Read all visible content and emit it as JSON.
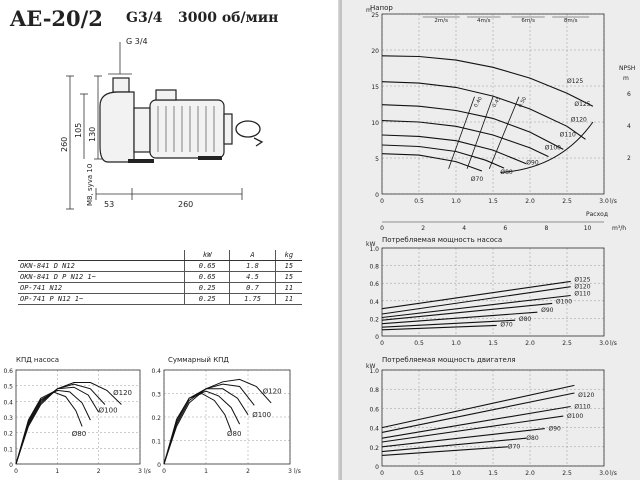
{
  "header": {
    "model": "AE-20/2",
    "connection": "G3/4",
    "speed": "3000 об/мин"
  },
  "drawing": {
    "dim_inlet": "G 3/4",
    "dim_130": "130",
    "dim_105": "105",
    "dim_260_vertical": "260",
    "dim_53": "53",
    "dim_260_horizontal": "260",
    "dim_suction": "M8, syva 10"
  },
  "spec_table": {
    "headers": [
      "",
      "kW",
      "A",
      "kg"
    ],
    "rows": [
      [
        "OKN-841 D N12",
        "0.65",
        "1.8",
        "15"
      ],
      [
        "OKN-841 D P N12 1~",
        "0.65",
        "4.5",
        "15"
      ],
      [
        "OP-741 N12",
        "0.25",
        "0.7",
        "11"
      ],
      [
        "OP-741 P N12 1~",
        "0.25",
        "1.75",
        "11"
      ]
    ]
  },
  "chart_data": [
    {
      "type": "line",
      "title": "КПД насоса",
      "xlabel": "l/s",
      "xlim": [
        0,
        3
      ],
      "ylim": [
        0,
        0.6
      ],
      "x_ticks": [
        "0",
        "1",
        "2",
        "3"
      ],
      "y_ticks": [
        "0",
        "0.1",
        "0.2",
        "0.3",
        "0.4",
        "0.5",
        "0.6"
      ],
      "curve_labels": [
        "Ø120",
        "Ø100",
        "Ø80"
      ],
      "series": [
        {
          "name": "Ø120",
          "x": [
            0,
            0.3,
            0.6,
            1.0,
            1.4,
            1.8,
            2.2,
            2.55
          ],
          "y": [
            0,
            0.24,
            0.38,
            0.48,
            0.52,
            0.52,
            0.47,
            0.38
          ]
        },
        {
          "name": "Ø110",
          "x": [
            0,
            0.3,
            0.6,
            1.0,
            1.4,
            1.8,
            2.15
          ],
          "y": [
            0,
            0.25,
            0.39,
            0.48,
            0.51,
            0.48,
            0.38
          ]
        },
        {
          "name": "Ø100",
          "x": [
            0,
            0.3,
            0.6,
            1.0,
            1.4,
            1.75,
            2.0
          ],
          "y": [
            0,
            0.26,
            0.4,
            0.48,
            0.49,
            0.44,
            0.33
          ]
        },
        {
          "name": "Ø90",
          "x": [
            0,
            0.3,
            0.6,
            1.0,
            1.3,
            1.6,
            1.8
          ],
          "y": [
            0,
            0.27,
            0.41,
            0.47,
            0.46,
            0.39,
            0.28
          ]
        },
        {
          "name": "Ø80",
          "x": [
            0,
            0.3,
            0.6,
            0.9,
            1.2,
            1.45,
            1.6
          ],
          "y": [
            0,
            0.28,
            0.42,
            0.46,
            0.43,
            0.34,
            0.24
          ]
        }
      ]
    },
    {
      "type": "line",
      "title": "Суммарный КПД",
      "xlabel": "l/s",
      "xlim": [
        0,
        3
      ],
      "ylim": [
        0,
        0.4
      ],
      "x_ticks": [
        "0",
        "1",
        "2",
        "3"
      ],
      "y_ticks": [
        "0",
        "0.1",
        "0.2",
        "0.3",
        "0.4"
      ],
      "curve_labels": [
        "Ø120",
        "Ø100",
        "Ø80"
      ],
      "series": [
        {
          "name": "Ø120",
          "x": [
            0,
            0.3,
            0.6,
            1.0,
            1.4,
            1.8,
            2.2,
            2.55
          ],
          "y": [
            0,
            0.16,
            0.26,
            0.32,
            0.35,
            0.36,
            0.33,
            0.26
          ]
        },
        {
          "name": "Ø110",
          "x": [
            0,
            0.3,
            0.6,
            1.0,
            1.4,
            1.8,
            2.15
          ],
          "y": [
            0,
            0.17,
            0.27,
            0.32,
            0.34,
            0.33,
            0.25
          ]
        },
        {
          "name": "Ø100",
          "x": [
            0,
            0.3,
            0.6,
            1.0,
            1.4,
            1.75,
            2.0
          ],
          "y": [
            0,
            0.18,
            0.28,
            0.32,
            0.32,
            0.28,
            0.21
          ]
        },
        {
          "name": "Ø90",
          "x": [
            0,
            0.3,
            0.6,
            1.0,
            1.3,
            1.6,
            1.8
          ],
          "y": [
            0,
            0.18,
            0.28,
            0.31,
            0.29,
            0.24,
            0.17
          ]
        },
        {
          "name": "Ø80",
          "x": [
            0,
            0.3,
            0.6,
            0.9,
            1.2,
            1.45,
            1.6
          ],
          "y": [
            0,
            0.19,
            0.28,
            0.3,
            0.27,
            0.21,
            0.14
          ]
        }
      ]
    },
    {
      "type": "line",
      "title": "Напор",
      "ylabel": "m",
      "ylim": [
        0,
        25
      ],
      "xlim": [
        0,
        3
      ],
      "x_ticks": [
        "0",
        "0.5",
        "1.0",
        "1.5",
        "2.0",
        "2.5",
        "3.0"
      ],
      "y_ticks": [
        "0",
        "5",
        "10",
        "15",
        "20",
        "25"
      ],
      "x_unit": "l/s",
      "x2_ticks": [
        "0",
        "2",
        "4",
        "6",
        "8",
        "10"
      ],
      "x2_unit": "m³/h",
      "x2_label": "Расход",
      "velocity_labels": [
        "2m/s",
        "4m/s",
        "6m/s",
        "8m/s"
      ],
      "npsh_label": "NPSH",
      "npsh_unit": "m",
      "npsh_ticks": [
        "2",
        "4",
        "6"
      ],
      "efficiency_labels": [
        "0.40",
        "0.45",
        "0.50"
      ],
      "curve_labels": [
        "Ø125",
        "Ø125",
        "Ø120",
        "Ø110",
        "Ø100",
        "Ø90",
        "Ø80",
        "Ø70"
      ],
      "series": [
        {
          "name": "Ø125",
          "x": [
            0,
            0.5,
            1.0,
            1.5,
            2.0,
            2.5,
            2.85
          ],
          "y": [
            19.2,
            19.1,
            18.6,
            17.6,
            16.1,
            14.0,
            12.2
          ]
        },
        {
          "name": "Ø120",
          "x": [
            0,
            0.5,
            1.0,
            1.5,
            2.0,
            2.5,
            2.75
          ],
          "y": [
            15.6,
            15.4,
            14.8,
            13.6,
            11.8,
            9.4,
            7.6
          ]
        },
        {
          "name": "Ø110",
          "x": [
            0,
            0.5,
            1.0,
            1.5,
            2.0,
            2.45
          ],
          "y": [
            12.4,
            12.2,
            11.6,
            10.5,
            8.6,
            6.2
          ]
        },
        {
          "name": "Ø100",
          "x": [
            0,
            0.5,
            1.0,
            1.5,
            2.0,
            2.25
          ],
          "y": [
            10.2,
            10.0,
            9.4,
            8.2,
            6.4,
            5.2
          ]
        },
        {
          "name": "Ø90",
          "x": [
            0,
            0.5,
            1.0,
            1.5,
            1.95
          ],
          "y": [
            8.2,
            8.0,
            7.4,
            6.1,
            4.2
          ]
        },
        {
          "name": "Ø80",
          "x": [
            0,
            0.5,
            1.0,
            1.4,
            1.65
          ],
          "y": [
            6.8,
            6.6,
            5.9,
            4.7,
            3.6
          ]
        },
        {
          "name": "Ø70",
          "x": [
            0,
            0.5,
            1.0,
            1.35
          ],
          "y": [
            5.6,
            5.4,
            4.5,
            3.2
          ]
        }
      ]
    },
    {
      "type": "line",
      "title": "Потребляемая мощность насоса",
      "ylabel": "kW",
      "xlim": [
        0,
        3
      ],
      "ylim": [
        0,
        1.0
      ],
      "x_ticks": [
        "0",
        "0.5",
        "1.0",
        "1.5",
        "2.0",
        "2.5",
        "3.0"
      ],
      "y_ticks": [
        "0",
        "0.2",
        "0.4",
        "0.6",
        "0.8",
        "1.0"
      ],
      "x_unit": "l/s",
      "curve_labels": [
        "Ø125",
        "Ø120",
        "Ø110",
        "Ø100",
        "Ø90",
        "Ø80",
        "Ø70"
      ],
      "series": [
        {
          "name": "Ø125",
          "x": [
            0,
            2.55
          ],
          "y": [
            0.31,
            0.62
          ]
        },
        {
          "name": "Ø120",
          "x": [
            0,
            2.55
          ],
          "y": [
            0.25,
            0.56
          ]
        },
        {
          "name": "Ø110",
          "x": [
            0,
            2.55
          ],
          "y": [
            0.21,
            0.46
          ]
        },
        {
          "name": "Ø100",
          "x": [
            0,
            2.3
          ],
          "y": [
            0.18,
            0.37
          ]
        },
        {
          "name": "Ø90",
          "x": [
            0,
            2.1
          ],
          "y": [
            0.14,
            0.27
          ]
        },
        {
          "name": "Ø80",
          "x": [
            0,
            1.8
          ],
          "y": [
            0.1,
            0.18
          ]
        },
        {
          "name": "Ø70",
          "x": [
            0,
            1.55
          ],
          "y": [
            0.07,
            0.12
          ]
        }
      ]
    },
    {
      "type": "line",
      "title": "Потребляемая мощность двигателя",
      "ylabel": "kW",
      "xlim": [
        0,
        3
      ],
      "ylim": [
        0,
        1.0
      ],
      "x_ticks": [
        "0",
        "0.5",
        "1.0",
        "1.5",
        "2.0",
        "2.5",
        "3.0"
      ],
      "y_ticks": [
        "0",
        "0.2",
        "0.4",
        "0.6",
        "0.8",
        "1.0"
      ],
      "x_unit": "l/s",
      "curve_labels": [
        "Ø120",
        "Ø110",
        "Ø100",
        "Ø90",
        "Ø80",
        "Ø70"
      ],
      "series": [
        {
          "name": "Ø125",
          "x": [
            0,
            2.6
          ],
          "y": [
            0.4,
            0.84
          ]
        },
        {
          "name": "Ø120",
          "x": [
            0,
            2.6
          ],
          "y": [
            0.35,
            0.76
          ]
        },
        {
          "name": "Ø110",
          "x": [
            0,
            2.55
          ],
          "y": [
            0.29,
            0.62
          ]
        },
        {
          "name": "Ø100",
          "x": [
            0,
            2.45
          ],
          "y": [
            0.25,
            0.52
          ]
        },
        {
          "name": "Ø90",
          "x": [
            0,
            2.2
          ],
          "y": [
            0.2,
            0.39
          ]
        },
        {
          "name": "Ø80",
          "x": [
            0,
            1.95
          ],
          "y": [
            0.15,
            0.29
          ]
        },
        {
          "name": "Ø70",
          "x": [
            0,
            1.7
          ],
          "y": [
            0.11,
            0.2
          ]
        }
      ]
    }
  ]
}
